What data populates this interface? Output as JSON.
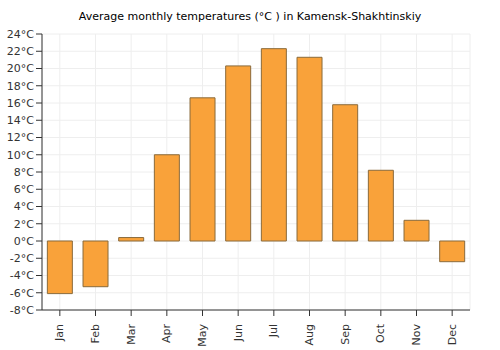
{
  "chart_data": {
    "type": "bar",
    "title": "Average monthly temperatures (°C ) in Kamensk-Shakhtinskiy",
    "categories": [
      "Jan",
      "Feb",
      "Mar",
      "Apr",
      "May",
      "Jun",
      "Jul",
      "Aug",
      "Sep",
      "Oct",
      "Nov",
      "Dec"
    ],
    "values": [
      -6.1,
      -5.3,
      0.4,
      10,
      16.6,
      20.3,
      22.3,
      21.3,
      15.8,
      8.2,
      2.4,
      -2.4
    ],
    "color": "#f9a23a",
    "ylim": [
      -8,
      24
    ],
    "yticks": [
      {
        "value": -8,
        "label": "-8°C"
      },
      {
        "value": -6,
        "label": "-6°C"
      },
      {
        "value": -4,
        "label": "-4°C"
      },
      {
        "value": -2,
        "label": "-2°C"
      },
      {
        "value": 0,
        "label": "0°C"
      },
      {
        "value": 2,
        "label": "2°C"
      },
      {
        "value": 4,
        "label": "4°C"
      },
      {
        "value": 6,
        "label": "6°C"
      },
      {
        "value": 8,
        "label": "8°C"
      },
      {
        "value": 10,
        "label": "10°C"
      },
      {
        "value": 12,
        "label": "12°C"
      },
      {
        "value": 14,
        "label": "14°C"
      },
      {
        "value": 16,
        "label": "16°C"
      },
      {
        "value": 18,
        "label": "18°C"
      },
      {
        "value": 20,
        "label": "20°C"
      },
      {
        "value": 22,
        "label": "22°C"
      },
      {
        "value": 24,
        "label": "24°C"
      }
    ],
    "grid": true
  }
}
